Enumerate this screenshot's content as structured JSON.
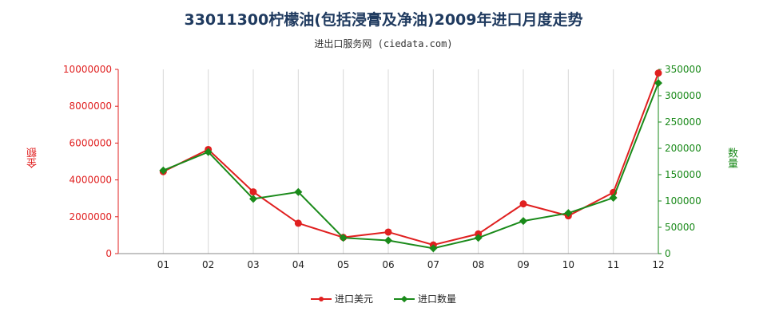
{
  "title": "33011300柠檬油(包括浸膏及净油)2009年进口月度走势",
  "subtitle": "进出口服务网 (ciedata.com)",
  "colors": {
    "left_series": "#e02020",
    "right_series": "#1a8a1a",
    "title": "#1f3a5f"
  },
  "chart_data": {
    "type": "line",
    "title": "33011300柠檬油(包括浸膏及净油)2009年进口月度走势",
    "categories": [
      "01",
      "02",
      "03",
      "04",
      "05",
      "06",
      "07",
      "08",
      "09",
      "10",
      "11",
      "12"
    ],
    "ylabel_left": "金额",
    "ylabel_right": "数量",
    "ylim_left": [
      0,
      10000000
    ],
    "ylim_right": [
      0,
      350000
    ],
    "yticks_left": [
      "0",
      "2000000",
      "4000000",
      "6000000",
      "8000000",
      "10000000"
    ],
    "yticks_right": [
      "0",
      "50000",
      "100000",
      "150000",
      "200000",
      "250000",
      "300000",
      "350000"
    ],
    "grid": "vertical",
    "legend_position": "bottom",
    "series": [
      {
        "name": "进口美元",
        "axis": "left",
        "color": "#e02020",
        "marker": "circle",
        "values": [
          4450000,
          5650000,
          3350000,
          1650000,
          880000,
          1170000,
          470000,
          1070000,
          2700000,
          2050000,
          3320000,
          9800000
        ]
      },
      {
        "name": "进口数量",
        "axis": "right",
        "color": "#1a8a1a",
        "marker": "diamond",
        "values": [
          158000,
          193000,
          104000,
          117000,
          30000,
          25000,
          10000,
          30000,
          62000,
          77000,
          106000,
          324000
        ]
      }
    ]
  }
}
